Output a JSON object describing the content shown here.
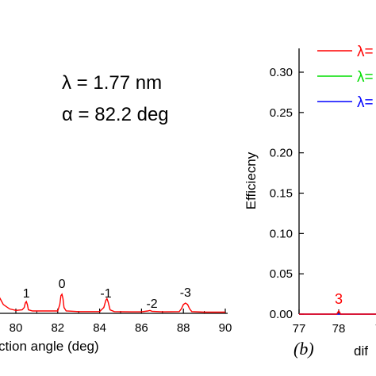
{
  "chart_data": [
    {
      "type": "line",
      "panel": "a",
      "xlabel": "diffraction angle (deg)",
      "xlabel_visible": "ction angle (deg)",
      "ylabel": "",
      "xlim": [
        78.5,
        90
      ],
      "xticks": [
        80,
        82,
        84,
        86,
        88,
        90
      ],
      "annotations": {
        "wavelength": "λ = 1.77 nm",
        "angle": "α = 82.2 deg"
      },
      "series_color": "#ff0000",
      "x": [
        78.5,
        78.8,
        79.1,
        79.4,
        79.7,
        80.0,
        80.3,
        80.4,
        80.45,
        80.5,
        80.55,
        80.6,
        80.8,
        81.5,
        82.0,
        82.1,
        82.15,
        82.2,
        82.25,
        82.3,
        82.4,
        83.0,
        84.0,
        84.2,
        84.3,
        84.35,
        84.4,
        84.5,
        84.7,
        85.5,
        86.0,
        86.3,
        86.4,
        86.5,
        87.0,
        87.8,
        87.9,
        88.0,
        88.1,
        88.2,
        88.3,
        88.4,
        89.0,
        90.0
      ],
      "y": [
        0.55,
        0.2,
        0.07,
        0.03,
        0.015,
        0.01,
        0.012,
        0.02,
        0.035,
        0.04,
        0.03,
        0.012,
        0.008,
        0.008,
        0.008,
        0.03,
        0.06,
        0.065,
        0.05,
        0.02,
        0.008,
        0.006,
        0.006,
        0.02,
        0.045,
        0.05,
        0.04,
        0.012,
        0.006,
        0.005,
        0.005,
        0.008,
        0.01,
        0.007,
        0.005,
        0.006,
        0.015,
        0.03,
        0.035,
        0.03,
        0.015,
        0.006,
        0.004,
        0.004
      ],
      "peak_labels": [
        {
          "label": "1",
          "x": 80.5
        },
        {
          "label": "0",
          "x": 82.2
        },
        {
          "label": "-1",
          "x": 84.3
        },
        {
          "label": "-2",
          "x": 86.5
        },
        {
          "label": "-3",
          "x": 88.1
        }
      ]
    },
    {
      "type": "line",
      "panel": "b",
      "xlabel": "dif",
      "ylabel": "Efficiecny",
      "xlim": [
        77,
        79.2
      ],
      "ylim": [
        0,
        0.3
      ],
      "xticks": [
        77,
        78
      ],
      "xtick_partial": "7",
      "yticks": [
        "0.00",
        "0.05",
        "0.10",
        "0.15",
        "0.20",
        "0.25",
        "0.30"
      ],
      "legend": [
        {
          "name": "λ=",
          "color": "#ff0000"
        },
        {
          "name": "λ=",
          "color": "#00dd00"
        },
        {
          "name": "λ=",
          "color": "#0000ff"
        }
      ],
      "legend_placement": "top-right",
      "series": [
        {
          "color": "#0000ff",
          "x": [
            77.0,
            78.5,
            79.2
          ],
          "y": [
            0.0,
            0.0,
            0.0
          ]
        },
        {
          "color": "#ff0000",
          "x": [
            77.0,
            77.95,
            78.0,
            78.05,
            79.2
          ],
          "y": [
            0.0,
            0.0,
            0.004,
            0.0,
            0.0
          ]
        }
      ],
      "peak_labels": [
        {
          "label": "3",
          "x": 78.0,
          "color": "#ff0000"
        }
      ]
    }
  ],
  "panel_labels": {
    "b": "(b)"
  }
}
